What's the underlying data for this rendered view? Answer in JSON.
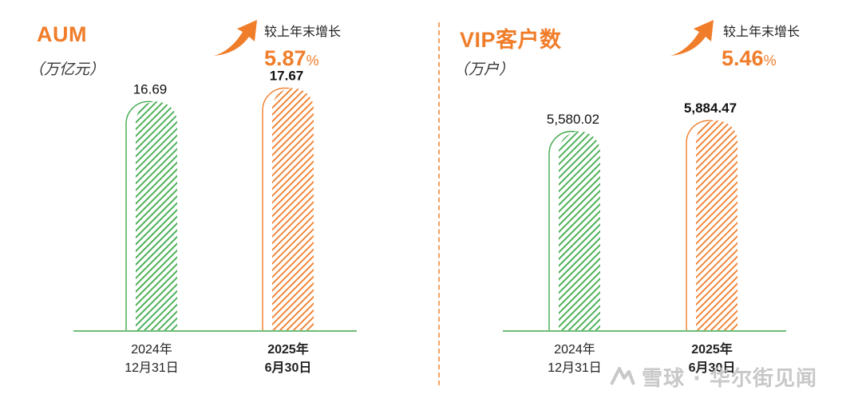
{
  "panels": [
    {
      "title": "AUM",
      "unit": "（万亿元）",
      "growth": {
        "label": "较上年末增长",
        "value": "5.87",
        "suffix": "%"
      }
    },
    {
      "title": "VIP客户数",
      "unit": "（万户）",
      "growth": {
        "label": "较上年末增长",
        "value": "5.46",
        "suffix": "%"
      }
    }
  ],
  "colors": {
    "accent": "#f07d2a",
    "green": "#3fa94b",
    "divider": "#f5a25e"
  },
  "icons": {
    "growth": "up-arrow-icon"
  },
  "watermark": "雪球 · 华尔街见闻",
  "chart_data": [
    {
      "type": "bar",
      "title": "AUM",
      "ylabel": "（万亿元）",
      "ylim": [
        0,
        19.5
      ],
      "categories": [
        [
          "2024年",
          "12月31日"
        ],
        [
          "2025年",
          "6月30日"
        ]
      ],
      "values": [
        16.69,
        17.67
      ],
      "labels": [
        "16.69",
        "17.67"
      ],
      "bold": [
        false,
        true
      ],
      "colors": [
        "#3fa94b",
        "#f07d2a"
      ]
    },
    {
      "type": "bar",
      "title": "VIP客户数",
      "ylabel": "（万户）",
      "ylim": [
        0,
        7500
      ],
      "categories": [
        [
          "2024年",
          "12月31日"
        ],
        [
          "2025年",
          "6月30日"
        ]
      ],
      "values": [
        5580.02,
        5884.47
      ],
      "labels": [
        "5,580.02",
        "5,884.47"
      ],
      "bold": [
        false,
        true
      ],
      "colors": [
        "#3fa94b",
        "#f07d2a"
      ]
    }
  ]
}
